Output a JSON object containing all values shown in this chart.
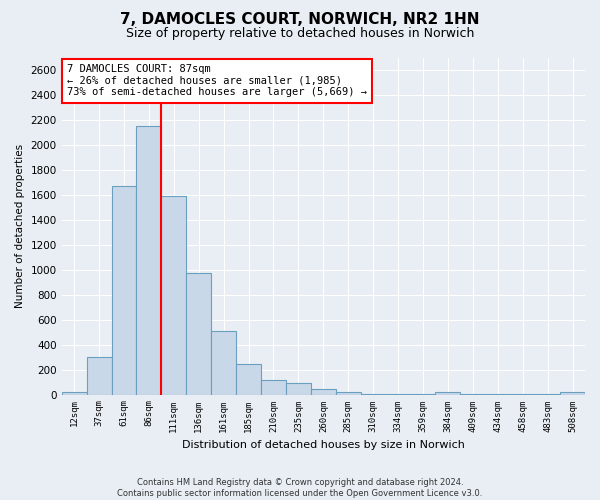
{
  "title": "7, DAMOCLES COURT, NORWICH, NR2 1HN",
  "subtitle": "Size of property relative to detached houses in Norwich",
  "xlabel": "Distribution of detached houses by size in Norwich",
  "ylabel": "Number of detached properties",
  "footer_line1": "Contains HM Land Registry data © Crown copyright and database right 2024.",
  "footer_line2": "Contains public sector information licensed under the Open Government Licence v3.0.",
  "annotation_line1": "7 DAMOCLES COURT: 87sqm",
  "annotation_line2": "← 26% of detached houses are smaller (1,985)",
  "annotation_line3": "73% of semi-detached houses are larger (5,669) →",
  "bar_color": "#c8d8e8",
  "bar_edge_color": "#6a9fc0",
  "categories": [
    "12sqm",
    "37sqm",
    "61sqm",
    "86sqm",
    "111sqm",
    "136sqm",
    "161sqm",
    "185sqm",
    "210sqm",
    "235sqm",
    "260sqm",
    "285sqm",
    "310sqm",
    "334sqm",
    "359sqm",
    "384sqm",
    "409sqm",
    "434sqm",
    "458sqm",
    "483sqm",
    "508sqm"
  ],
  "values": [
    20,
    300,
    1670,
    2150,
    1590,
    970,
    510,
    245,
    115,
    95,
    45,
    20,
    8,
    3,
    3,
    18,
    2,
    2,
    2,
    2,
    20
  ],
  "ylim": [
    0,
    2700
  ],
  "yticks": [
    0,
    200,
    400,
    600,
    800,
    1000,
    1200,
    1400,
    1600,
    1800,
    2000,
    2200,
    2400,
    2600
  ],
  "background_color": "#e8eef4",
  "grid_color": "#ffffff",
  "title_fontsize": 11,
  "subtitle_fontsize": 9,
  "red_line_index": 3
}
